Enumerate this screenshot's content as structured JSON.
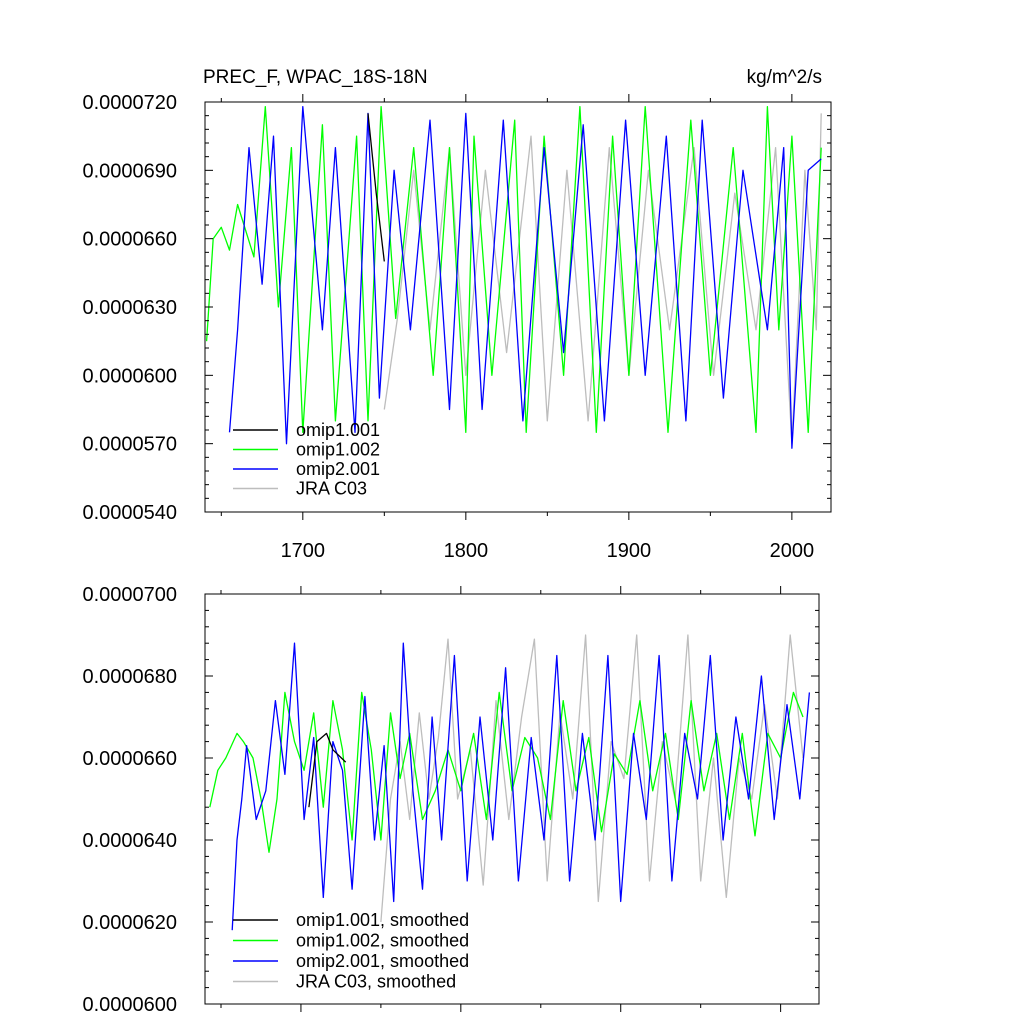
{
  "chart_data": [
    {
      "type": "line",
      "title": "PREC_F, WPAC_18S-18N",
      "units": "kg/m^2/s",
      "xlabel": "",
      "ylabel": "",
      "xlim": [
        1640,
        2024
      ],
      "ylim": [
        5.4e-05,
        7.2e-05
      ],
      "x_ticks": [
        1700,
        1800,
        1900,
        2000
      ],
      "x_tick_labels": [
        "1700",
        "1800",
        "1900",
        "2000"
      ],
      "y_ticks": [
        5.4e-05,
        5.7e-05,
        6e-05,
        6.3e-05,
        6.6e-05,
        6.9e-05,
        7.2e-05
      ],
      "y_tick_labels": [
        "0.0000540",
        "0.0000570",
        "0.0000600",
        "0.0000630",
        "0.0000660",
        "0.0000690",
        "0.0000720"
      ],
      "legend": [
        "omip1.001",
        "omip1.002",
        "omip2.001",
        "JRA C03"
      ],
      "legend_position": "lower-left",
      "series": [
        {
          "name": "omip1.001",
          "color": "#000000",
          "x": [
            1740,
            1745,
            1750
          ],
          "values": [
            7.15e-05,
            6.8e-05,
            6.5e-05
          ]
        },
        {
          "name": "omip1.002",
          "color": "#00ff00",
          "x": [
            1641,
            1645,
            1650,
            1655,
            1660,
            1670,
            1677,
            1685,
            1693,
            1700,
            1712,
            1720,
            1733,
            1740,
            1748,
            1757,
            1768,
            1780,
            1790,
            1800,
            1805,
            1816,
            1830,
            1837,
            1848,
            1860,
            1870,
            1880,
            1890,
            1900,
            1910,
            1924,
            1938,
            1950,
            1964,
            1978,
            1985,
            1992,
            2000,
            2010,
            2018
          ],
          "values": [
            6.15e-05,
            6.6e-05,
            6.65e-05,
            6.55e-05,
            6.75e-05,
            6.52e-05,
            7.18e-05,
            6.3e-05,
            7e-05,
            5.75e-05,
            7.1e-05,
            5.8e-05,
            7.05e-05,
            5.8e-05,
            7.18e-05,
            6.25e-05,
            7e-05,
            6e-05,
            7e-05,
            5.75e-05,
            7.05e-05,
            6e-05,
            7.12e-05,
            5.75e-05,
            7.05e-05,
            6e-05,
            7.18e-05,
            5.75e-05,
            7.05e-05,
            6e-05,
            7.18e-05,
            5.75e-05,
            7.12e-05,
            6e-05,
            7e-05,
            5.75e-05,
            7.18e-05,
            6.2e-05,
            7.05e-05,
            5.75e-05,
            7e-05
          ]
        },
        {
          "name": "omip2.001",
          "color": "#0000ff",
          "x": [
            1655,
            1660,
            1667,
            1675,
            1682,
            1690,
            1700,
            1712,
            1720,
            1732,
            1740,
            1747,
            1756,
            1766,
            1778,
            1790,
            1800,
            1810,
            1823,
            1835,
            1848,
            1860,
            1872,
            1885,
            1898,
            1910,
            1923,
            1935,
            1945,
            1958,
            1970,
            1985,
            1995,
            2000,
            2010,
            2018
          ],
          "values": [
            5.75e-05,
            6.2e-05,
            7e-05,
            6.4e-05,
            7.05e-05,
            5.7e-05,
            7.18e-05,
            6.2e-05,
            7e-05,
            5.75e-05,
            7.15e-05,
            5.9e-05,
            6.9e-05,
            6.2e-05,
            7.12e-05,
            5.85e-05,
            7.15e-05,
            5.85e-05,
            7.12e-05,
            5.8e-05,
            7e-05,
            6.1e-05,
            7.1e-05,
            5.8e-05,
            7.12e-05,
            6e-05,
            7.05e-05,
            5.8e-05,
            7.12e-05,
            5.9e-05,
            6.9e-05,
            6.2e-05,
            7e-05,
            5.68e-05,
            6.9e-05,
            6.95e-05
          ]
        },
        {
          "name": "JRA C03",
          "color": "#bdbdbd",
          "x": [
            1750,
            1758,
            1768,
            1778,
            1790,
            1800,
            1812,
            1825,
            1840,
            1850,
            1862,
            1875,
            1888,
            1900,
            1912,
            1925,
            1940,
            1952,
            1965,
            1978,
            1990,
            2000,
            2008,
            2015,
            2018
          ],
          "values": [
            5.85e-05,
            6.25e-05,
            6.9e-05,
            6.2e-05,
            7e-05,
            6e-05,
            6.9e-05,
            6.1e-05,
            7.05e-05,
            5.8e-05,
            6.9e-05,
            5.8e-05,
            7e-05,
            6e-05,
            6.9e-05,
            6.2e-05,
            7e-05,
            6e-05,
            6.8e-05,
            6.2e-05,
            7e-05,
            5.7e-05,
            6.9e-05,
            6.2e-05,
            7.15e-05
          ]
        }
      ]
    },
    {
      "type": "line",
      "title": "",
      "xlabel": "",
      "ylabel": "",
      "xlim": [
        1640,
        2024
      ],
      "ylim": [
        6e-05,
        7e-05
      ],
      "x_ticks": [
        1700,
        1800,
        1900,
        2000
      ],
      "y_ticks": [
        6e-05,
        6.2e-05,
        6.4e-05,
        6.6e-05,
        6.8e-05,
        7e-05
      ],
      "y_tick_labels": [
        "0.0000600",
        "0.0000620",
        "0.0000640",
        "0.0000660",
        "0.0000680",
        "0.0000700"
      ],
      "legend": [
        "omip1.001, smoothed",
        "omip1.002, smoothed",
        "omip2.001, smoothed",
        "JRA C03, smoothed"
      ],
      "legend_position": "lower-left",
      "series": [
        {
          "name": "omip1.001, smoothed",
          "color": "#000000",
          "x": [
            1705,
            1710,
            1716,
            1720,
            1728
          ],
          "values": [
            6.48e-05,
            6.64e-05,
            6.66e-05,
            6.62e-05,
            6.59e-05
          ]
        },
        {
          "name": "omip1.002, smoothed",
          "color": "#00ff00",
          "x": [
            1643,
            1648,
            1653,
            1660,
            1664,
            1670,
            1675,
            1680,
            1685,
            1690,
            1696,
            1702,
            1708,
            1714,
            1720,
            1726,
            1732,
            1738,
            1744,
            1750,
            1756,
            1762,
            1768,
            1776,
            1784,
            1792,
            1800,
            1808,
            1816,
            1824,
            1832,
            1840,
            1848,
            1856,
            1864,
            1872,
            1880,
            1888,
            1896,
            1904,
            1912,
            1920,
            1928,
            1936,
            1944,
            1952,
            1960,
            1968,
            1976,
            1984,
            1992,
            2000,
            2008,
            2014
          ],
          "values": [
            6.48e-05,
            6.57e-05,
            6.6e-05,
            6.66e-05,
            6.64e-05,
            6.6e-05,
            6.5e-05,
            6.37e-05,
            6.5e-05,
            6.76e-05,
            6.64e-05,
            6.57e-05,
            6.71e-05,
            6.48e-05,
            6.74e-05,
            6.62e-05,
            6.4e-05,
            6.76e-05,
            6.62e-05,
            6.4e-05,
            6.71e-05,
            6.55e-05,
            6.66e-05,
            6.45e-05,
            6.52e-05,
            6.62e-05,
            6.52e-05,
            6.66e-05,
            6.45e-05,
            6.76e-05,
            6.52e-05,
            6.65e-05,
            6.6e-05,
            6.45e-05,
            6.74e-05,
            6.52e-05,
            6.65e-05,
            6.42e-05,
            6.61e-05,
            6.56e-05,
            6.74e-05,
            6.52e-05,
            6.66e-05,
            6.45e-05,
            6.74e-05,
            6.52e-05,
            6.66e-05,
            6.45e-05,
            6.66e-05,
            6.41e-05,
            6.66e-05,
            6.6e-05,
            6.76e-05,
            6.7e-05
          ]
        },
        {
          "name": "omip2.001, smoothed",
          "color": "#0000ff",
          "x": [
            1657,
            1660,
            1663,
            1666,
            1672,
            1678,
            1684,
            1690,
            1696,
            1702,
            1708,
            1714,
            1720,
            1726,
            1732,
            1740,
            1746,
            1752,
            1758,
            1764,
            1770,
            1776,
            1782,
            1788,
            1796,
            1804,
            1812,
            1820,
            1828,
            1836,
            1844,
            1852,
            1860,
            1868,
            1876,
            1884,
            1892,
            1900,
            1908,
            1916,
            1924,
            1932,
            1940,
            1948,
            1956,
            1964,
            1972,
            1980,
            1988,
            1996,
            2004,
            2012,
            2018
          ],
          "values": [
            6.18e-05,
            6.4e-05,
            6.5e-05,
            6.63e-05,
            6.45e-05,
            6.52e-05,
            6.74e-05,
            6.56e-05,
            6.88e-05,
            6.45e-05,
            6.65e-05,
            6.26e-05,
            6.64e-05,
            6.57e-05,
            6.28e-05,
            6.75e-05,
            6.4e-05,
            6.63e-05,
            6.25e-05,
            6.88e-05,
            6.52e-05,
            6.28e-05,
            6.7e-05,
            6.4e-05,
            6.85e-05,
            6.3e-05,
            6.7e-05,
            6.4e-05,
            6.82e-05,
            6.3e-05,
            6.65e-05,
            6.4e-05,
            6.85e-05,
            6.3e-05,
            6.66e-05,
            6.4e-05,
            6.85e-05,
            6.25e-05,
            6.66e-05,
            6.45e-05,
            6.85e-05,
            6.3e-05,
            6.66e-05,
            6.5e-05,
            6.85e-05,
            6.4e-05,
            6.7e-05,
            6.5e-05,
            6.8e-05,
            6.45e-05,
            6.73e-05,
            6.5e-05,
            6.76e-05
          ]
        },
        {
          "name": "JRA C03, smoothed",
          "color": "#bdbdbd",
          "x": [
            1750,
            1756,
            1762,
            1768,
            1774,
            1780,
            1786,
            1792,
            1798,
            1806,
            1814,
            1822,
            1830,
            1838,
            1846,
            1854,
            1862,
            1870,
            1878,
            1886,
            1894,
            1902,
            1910,
            1918,
            1926,
            1934,
            1942,
            1950,
            1958,
            1966,
            1974,
            1982,
            1990,
            1998,
            2006,
            2014
          ],
          "values": [
            6.2e-05,
            6.5e-05,
            6.64e-05,
            6.45e-05,
            6.71e-05,
            6.5e-05,
            6.65e-05,
            6.89e-05,
            6.5e-05,
            6.62e-05,
            6.29e-05,
            6.74e-05,
            6.45e-05,
            6.7e-05,
            6.89e-05,
            6.3e-05,
            6.71e-05,
            6.5e-05,
            6.9e-05,
            6.25e-05,
            6.64e-05,
            6.55e-05,
            6.9e-05,
            6.3e-05,
            6.64e-05,
            6.5e-05,
            6.9e-05,
            6.3e-05,
            6.6e-05,
            6.26e-05,
            6.6e-05,
            6.5e-05,
            6.73e-05,
            6.5e-05,
            6.9e-05,
            6.6e-05
          ]
        }
      ]
    }
  ]
}
